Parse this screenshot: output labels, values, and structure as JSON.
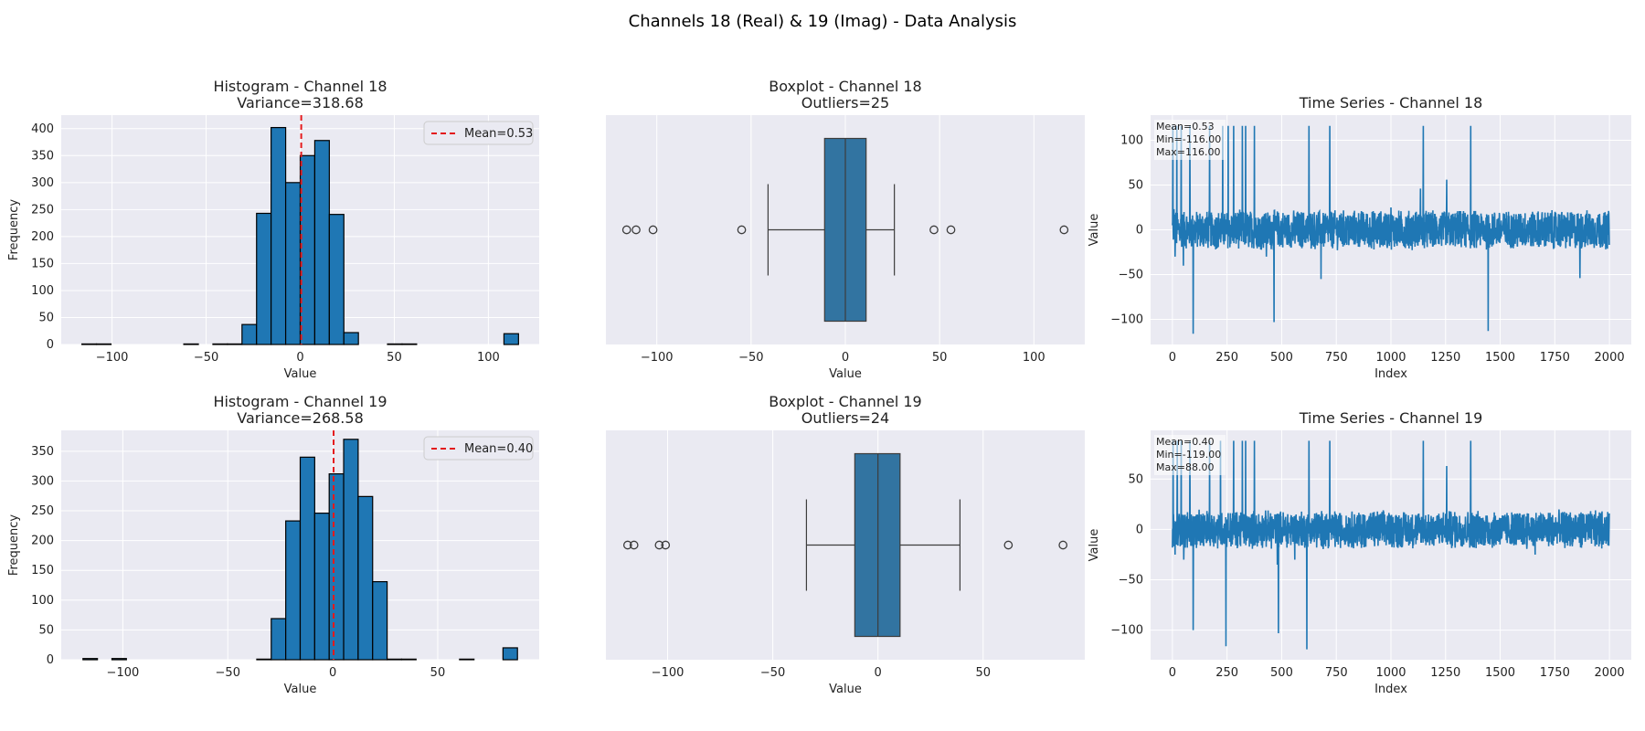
{
  "figure": {
    "suptitle": "Channels 18 (Real) & 19 (Imag) - Data Analysis"
  },
  "colors": {
    "background": "#eaeaf2",
    "grid": "#ffffff",
    "bar": "#1f77b4",
    "box": "#3274a1",
    "mean_line": "#e31a1c",
    "line": "#1f77b4"
  },
  "chart_data": [
    {
      "type": "bar",
      "name": "histogram-ch18",
      "title": "Histogram - Channel 18",
      "subtitle": "Variance=318.68",
      "xlabel": "Value",
      "ylabel": "Frequency",
      "xlim": [
        -127,
        127
      ],
      "ylim": [
        0,
        425
      ],
      "xticks": [
        -100,
        -50,
        0,
        50,
        100
      ],
      "yticks": [
        0,
        50,
        100,
        150,
        200,
        250,
        300,
        350,
        400
      ],
      "bin_edges": [
        -116,
        -108.27,
        -100.53,
        -92.8,
        -85.07,
        -77.33,
        -69.6,
        -61.87,
        -54.13,
        -46.4,
        -38.67,
        -30.93,
        -23.2,
        -15.47,
        -7.73,
        0,
        7.73,
        15.47,
        23.2,
        30.93,
        38.67,
        46.4,
        54.13,
        61.87,
        69.6,
        77.33,
        85.07,
        92.8,
        100.53,
        108.27,
        116
      ],
      "counts": [
        1,
        1,
        0,
        0,
        0,
        0,
        0,
        1,
        0,
        1,
        1,
        37,
        243,
        402,
        300,
        350,
        378,
        241,
        22,
        0,
        0,
        1,
        1,
        0,
        0,
        0,
        0,
        0,
        0,
        20
      ],
      "mean": 0.53,
      "legend": {
        "label": "Mean=0.53",
        "position": "upper right"
      },
      "grid": true
    },
    {
      "type": "box",
      "name": "boxplot-ch18",
      "title": "Boxplot - Channel 18",
      "subtitle": "Outliers=25",
      "xlabel": "Value",
      "xlim": [
        -127,
        127
      ],
      "xticks": [
        -100,
        -50,
        0,
        50,
        100
      ],
      "whisker_low": -41,
      "q1": -11,
      "median": 0,
      "q3": 11,
      "whisker_high": 26,
      "outliers": [
        -116,
        -111,
        -102,
        -55,
        47,
        56,
        116
      ],
      "grid": true
    },
    {
      "type": "line",
      "name": "timeseries-ch18",
      "title": "Time Series - Channel 18",
      "xlabel": "Index",
      "ylabel": "Value",
      "xlim": [
        -100,
        2100
      ],
      "ylim": [
        -128,
        128
      ],
      "xticks": [
        0,
        250,
        500,
        750,
        1000,
        1250,
        1500,
        1750,
        2000
      ],
      "yticks": [
        -100,
        -50,
        0,
        50,
        100
      ],
      "n_points": 2000,
      "stats": [
        "Mean=0.53",
        "Min=-116.00",
        "Max=116.00"
      ],
      "spikes": [
        [
          2,
          116
        ],
        [
          7,
          23
        ],
        [
          12,
          -30
        ],
        [
          20,
          116
        ],
        [
          40,
          116
        ],
        [
          50,
          -40
        ],
        [
          80,
          116
        ],
        [
          95,
          -116
        ],
        [
          170,
          116
        ],
        [
          230,
          116
        ],
        [
          255,
          116
        ],
        [
          280,
          116
        ],
        [
          320,
          116
        ],
        [
          335,
          116
        ],
        [
          375,
          116
        ],
        [
          430,
          -30
        ],
        [
          465,
          -103
        ],
        [
          625,
          116
        ],
        [
          680,
          -55
        ],
        [
          720,
          116
        ],
        [
          1000,
          25
        ],
        [
          1135,
          46
        ],
        [
          1148,
          116
        ],
        [
          1255,
          56
        ],
        [
          1365,
          116
        ],
        [
          1445,
          -113
        ],
        [
          1865,
          -54
        ]
      ],
      "grid": true
    },
    {
      "type": "bar",
      "name": "histogram-ch19",
      "title": "Histogram - Channel 19",
      "subtitle": "Variance=268.58",
      "xlabel": "Value",
      "ylabel": "Frequency",
      "xlim": [
        -129.35,
        98.35
      ],
      "ylim": [
        0,
        385
      ],
      "xticks": [
        -100,
        -50,
        0,
        50
      ],
      "yticks": [
        0,
        50,
        100,
        150,
        200,
        250,
        300,
        350
      ],
      "bin_edges": [
        -119,
        -112.1,
        -105.2,
        -98.3,
        -91.4,
        -84.5,
        -77.6,
        -70.7,
        -63.8,
        -56.9,
        -50,
        -43.1,
        -36.2,
        -29.3,
        -22.4,
        -15.5,
        -8.6,
        -1.7,
        5.2,
        12.1,
        19,
        25.9,
        32.8,
        39.7,
        46.6,
        53.5,
        60.4,
        67.3,
        74.2,
        81.1,
        88
      ],
      "counts": [
        2,
        0,
        2,
        0,
        0,
        0,
        0,
        0,
        0,
        0,
        0,
        0,
        1,
        69,
        233,
        340,
        246,
        312,
        370,
        274,
        131,
        1,
        1,
        0,
        0,
        0,
        1,
        0,
        0,
        20
      ],
      "mean": 0.4,
      "legend": {
        "label": "Mean=0.40",
        "position": "upper right"
      },
      "grid": true
    },
    {
      "type": "box",
      "name": "boxplot-ch19",
      "title": "Boxplot - Channel 19",
      "subtitle": "Outliers=24",
      "xlabel": "Value",
      "xlim": [
        -129.35,
        98.35
      ],
      "xticks": [
        -100,
        -50,
        0,
        50
      ],
      "whisker_low": -34,
      "q1": -11,
      "median": 0,
      "q3": 10.5,
      "whisker_high": 39,
      "outliers": [
        -119,
        -116,
        -104,
        -101,
        62,
        88
      ],
      "grid": true
    },
    {
      "type": "line",
      "name": "timeseries-ch19",
      "title": "Time Series - Channel 19",
      "xlabel": "Index",
      "ylabel": "Value",
      "xlim": [
        -100,
        2100
      ],
      "ylim": [
        -129.35,
        98.35
      ],
      "xticks": [
        0,
        250,
        500,
        750,
        1000,
        1250,
        1500,
        1750,
        2000
      ],
      "yticks": [
        -100,
        -50,
        0,
        50
      ],
      "n_points": 2000,
      "stats": [
        "Mean=0.40",
        "Min=-119.00",
        "Max=88.00"
      ],
      "spikes": [
        [
          3,
          88
        ],
        [
          12,
          -25
        ],
        [
          22,
          88
        ],
        [
          40,
          88
        ],
        [
          52,
          -30
        ],
        [
          80,
          88
        ],
        [
          95,
          -100
        ],
        [
          170,
          88
        ],
        [
          220,
          88
        ],
        [
          245,
          -116
        ],
        [
          280,
          88
        ],
        [
          320,
          88
        ],
        [
          335,
          88
        ],
        [
          375,
          88
        ],
        [
          480,
          -35
        ],
        [
          485,
          -103
        ],
        [
          560,
          -30
        ],
        [
          615,
          -119
        ],
        [
          625,
          88
        ],
        [
          720,
          88
        ],
        [
          1148,
          88
        ],
        [
          1255,
          63
        ],
        [
          1365,
          88
        ],
        [
          1660,
          -25
        ]
      ],
      "grid": true
    }
  ]
}
